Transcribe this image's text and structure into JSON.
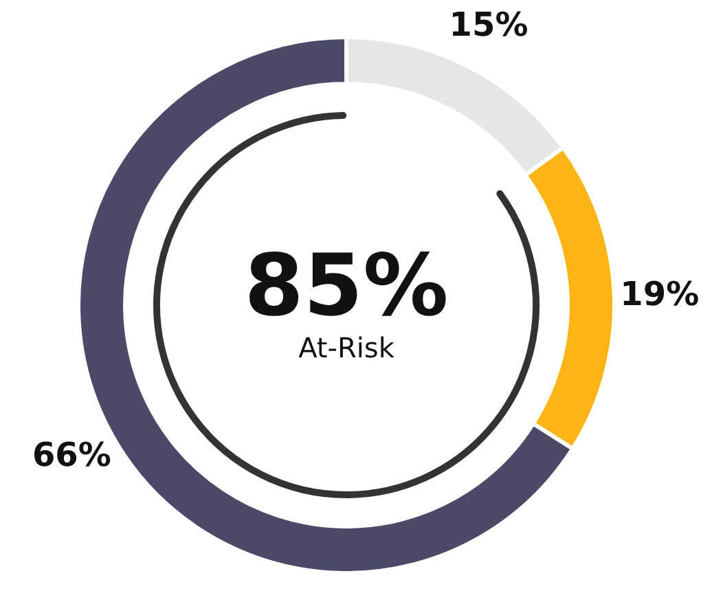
{
  "chart_data": {
    "type": "donut",
    "categories": [
      null,
      null,
      null
    ],
    "values": [
      15,
      19,
      66
    ],
    "colors": [
      "#e6e6e6",
      "#fdb515",
      "#4a4a68"
    ],
    "value_labels": [
      "15%",
      "19%",
      "66%"
    ],
    "annotations": [
      "85%",
      "At-Risk"
    ]
  }
}
